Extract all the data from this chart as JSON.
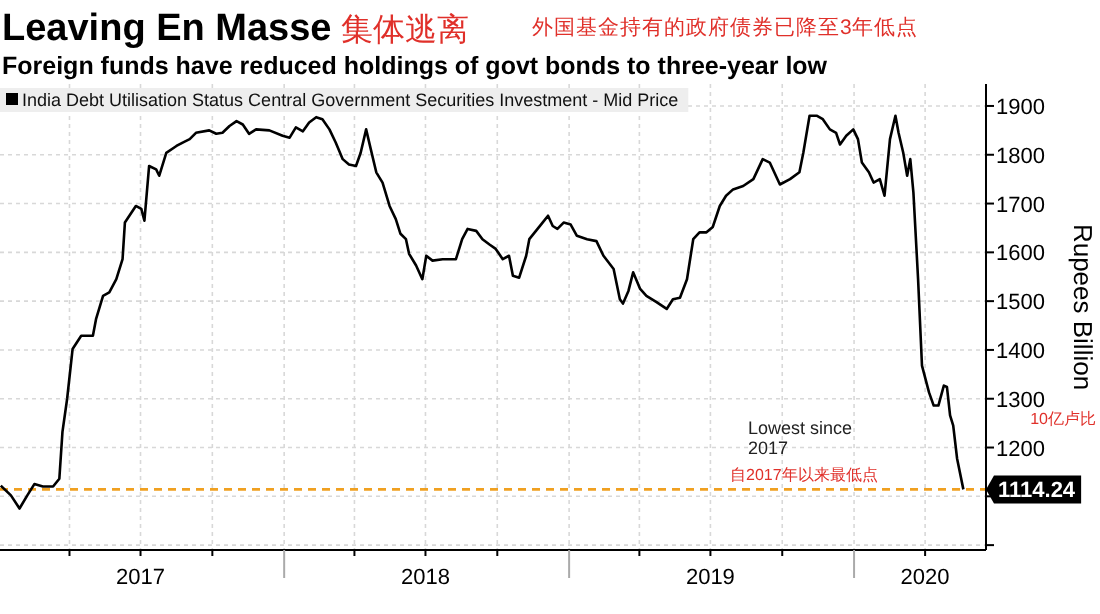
{
  "chart_data": {
    "type": "line",
    "title": "Leaving En Masse",
    "subtitle": "Foreign funds have reduced holdings of govt bonds to three-year low",
    "ylabel": "Rupees Billion",
    "annotations": [
      "集体逃离",
      "外国基金持有的政府债券已降至3年低点",
      "Lowest since 2017",
      "自2017年以来最低点",
      "10亿卢比"
    ],
    "legend": "top left",
    "grid": true,
    "xlim": [
      "2017-01-02",
      "2020-06-18"
    ],
    "ylim": [
      990,
      1945
    ],
    "xticks": [
      {
        "value": "2017-04-01",
        "label": null
      },
      {
        "value": "2017-07-01",
        "label": "2017"
      },
      {
        "value": "2017-10-01",
        "label": null
      },
      {
        "value": "2018-01-01",
        "label": null
      },
      {
        "value": "2018-04-01",
        "label": null
      },
      {
        "value": "2018-07-01",
        "label": "2018"
      },
      {
        "value": "2018-10-01",
        "label": null
      },
      {
        "value": "2019-01-01",
        "label": null
      },
      {
        "value": "2019-04-01",
        "label": null
      },
      {
        "value": "2019-07-01",
        "label": "2019"
      },
      {
        "value": "2019-10-01",
        "label": null
      },
      {
        "value": "2020-01-01",
        "label": null
      },
      {
        "value": "2020-04-01",
        "label": "2020"
      }
    ],
    "yticks": [
      {
        "value": 1000,
        "label": null
      },
      {
        "value": 1100,
        "label": null
      },
      1200,
      1300,
      1400,
      1500,
      1600,
      1700,
      1800,
      1900
    ],
    "ref_lines": [
      {
        "axis": "y",
        "value": 1114.24,
        "label": "1114.24",
        "color": "#f0a020",
        "line_style": "dashed"
      }
    ],
    "series": [
      {
        "name": "India Debt Utilisation Status Central Government Securities Investment - Mid Price",
        "color": "#000000",
        "x": [
          "2017-01-03",
          "2017-01-16",
          "2017-01-27",
          "2017-02-06",
          "2017-02-15",
          "2017-02-26",
          "2017-03-11",
          "2017-03-19",
          "2017-03-23",
          "2017-03-29",
          "2017-04-05",
          "2017-04-16",
          "2017-05-01",
          "2017-05-05",
          "2017-05-14",
          "2017-05-22",
          "2017-05-31",
          "2017-06-08",
          "2017-06-11",
          "2017-06-25",
          "2017-07-02",
          "2017-07-06",
          "2017-07-12",
          "2017-07-21",
          "2017-07-25",
          "2017-08-03",
          "2017-08-16",
          "2017-08-24",
          "2017-09-02",
          "2017-09-10",
          "2017-09-27",
          "2017-10-06",
          "2017-10-14",
          "2017-10-23",
          "2017-11-01",
          "2017-11-09",
          "2017-11-17",
          "2017-11-26",
          "2017-12-13",
          "2017-12-30",
          "2018-01-08",
          "2018-01-16",
          "2018-01-25",
          "2018-02-02",
          "2018-02-11",
          "2018-02-19",
          "2018-02-28",
          "2018-03-08",
          "2018-03-17",
          "2018-03-25",
          "2018-04-03",
          "2018-04-09",
          "2018-04-16",
          "2018-04-22",
          "2018-04-29",
          "2018-05-07",
          "2018-05-16",
          "2018-05-24",
          "2018-05-30",
          "2018-06-06",
          "2018-06-10",
          "2018-06-19",
          "2018-06-27",
          "2018-07-02",
          "2018-07-10",
          "2018-07-23",
          "2018-08-09",
          "2018-08-17",
          "2018-08-24",
          "2018-09-04",
          "2018-09-12",
          "2018-09-21",
          "2018-09-29",
          "2018-10-08",
          "2018-10-16",
          "2018-10-21",
          "2018-10-29",
          "2018-11-07",
          "2018-11-11",
          "2018-11-28",
          "2018-12-05",
          "2018-12-11",
          "2018-12-17",
          "2018-12-25",
          "2019-01-03",
          "2019-01-11",
          "2019-01-24",
          "2019-02-05",
          "2019-02-14",
          "2019-02-27",
          "2019-03-07",
          "2019-03-11",
          "2019-03-18",
          "2019-03-24",
          "2019-04-02",
          "2019-04-10",
          "2019-04-23",
          "2019-05-06",
          "2019-05-14",
          "2019-05-23",
          "2019-06-01",
          "2019-06-09",
          "2019-06-17",
          "2019-06-26",
          "2019-07-04",
          "2019-07-13",
          "2019-07-21",
          "2019-07-30",
          "2019-08-12",
          "2019-08-25",
          "2019-09-06",
          "2019-09-15",
          "2019-09-28",
          "2019-10-11",
          "2019-10-23",
          "2019-10-28",
          "2019-11-05",
          "2019-11-14",
          "2019-11-22",
          "2019-12-01",
          "2019-12-09",
          "2019-12-14",
          "2019-12-22",
          "2019-12-31",
          "2020-01-06",
          "2020-01-11",
          "2020-01-20",
          "2020-01-26",
          "2020-02-03",
          "2020-02-09",
          "2020-02-16",
          "2020-02-23",
          "2020-02-27",
          "2020-03-04",
          "2020-03-09",
          "2020-03-13",
          "2020-03-17",
          "2020-03-23",
          "2020-03-28",
          "2020-04-06",
          "2020-04-12",
          "2020-04-18",
          "2020-04-25",
          "2020-04-29",
          "2020-05-03",
          "2020-05-07",
          "2020-05-12",
          "2020-05-20"
        ],
        "values": [
          1122,
          1102,
          1075,
          1102,
          1125,
          1120,
          1120,
          1136,
          1232,
          1300,
          1402,
          1429,
          1429,
          1463,
          1511,
          1518,
          1545,
          1586,
          1661,
          1695,
          1689,
          1665,
          1777,
          1770,
          1757,
          1804,
          1818,
          1825,
          1832,
          1845,
          1850,
          1843,
          1845,
          1859,
          1869,
          1862,
          1843,
          1852,
          1850,
          1839,
          1835,
          1856,
          1848,
          1866,
          1877,
          1873,
          1852,
          1825,
          1791,
          1780,
          1777,
          1804,
          1852,
          1811,
          1764,
          1743,
          1695,
          1668,
          1638,
          1627,
          1597,
          1573,
          1545,
          1593,
          1583,
          1586,
          1586,
          1627,
          1648,
          1644,
          1627,
          1616,
          1607,
          1586,
          1593,
          1552,
          1548,
          1593,
          1627,
          1661,
          1675,
          1654,
          1648,
          1661,
          1657,
          1634,
          1627,
          1623,
          1593,
          1566,
          1504,
          1495,
          1521,
          1559,
          1525,
          1511,
          1498,
          1484,
          1504,
          1507,
          1545,
          1627,
          1641,
          1641,
          1652,
          1695,
          1716,
          1729,
          1736,
          1750,
          1791,
          1784,
          1739,
          1750,
          1764,
          1804,
          1880,
          1880,
          1873,
          1852,
          1845,
          1821,
          1839,
          1852,
          1832,
          1784,
          1764,
          1743,
          1750,
          1716,
          1832,
          1880,
          1845,
          1804,
          1757,
          1791,
          1723,
          1545,
          1368,
          1313,
          1286,
          1286,
          1327,
          1324,
          1266,
          1245,
          1177,
          1114.24
        ]
      }
    ]
  }
}
